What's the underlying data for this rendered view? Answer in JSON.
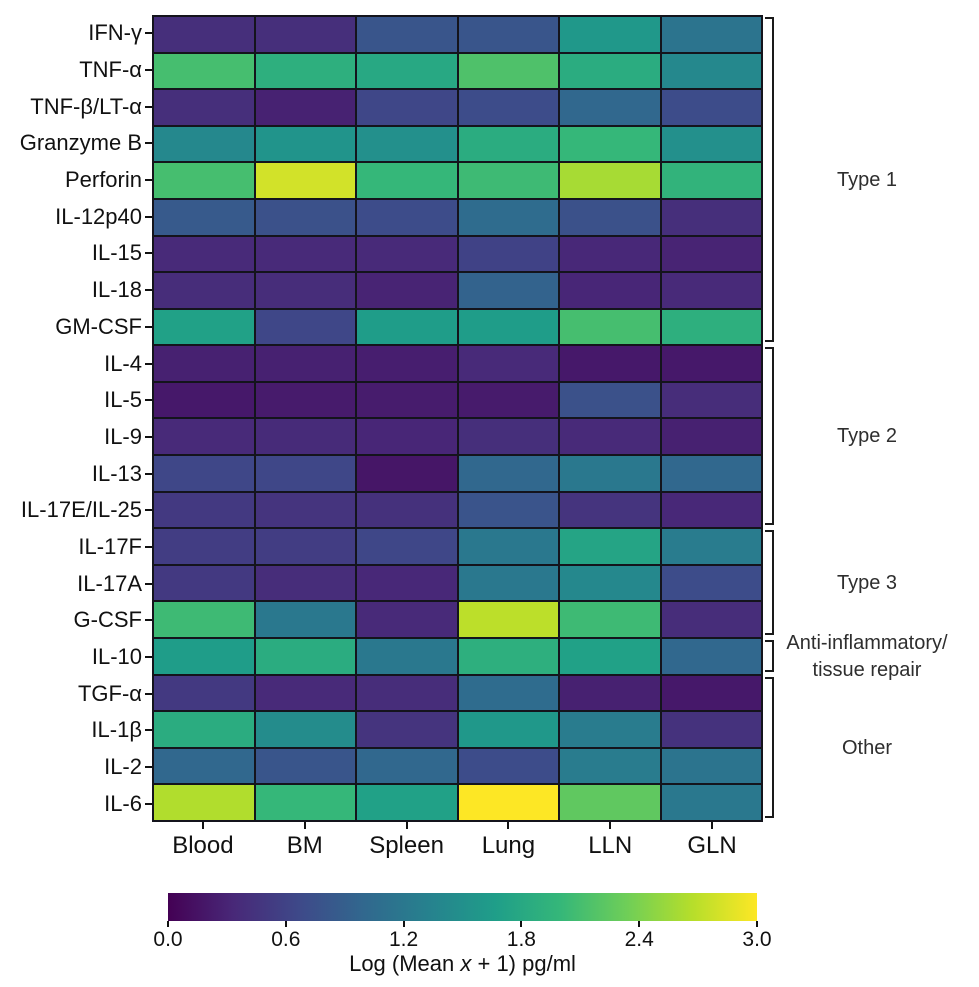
{
  "chart_data": {
    "type": "heatmap",
    "columns": [
      "Blood",
      "BM",
      "Spleen",
      "Lung",
      "LLN",
      "GLN"
    ],
    "rows": [
      "IFN-γ",
      "TNF-α",
      "TNF-β/LT-α",
      "Granzyme B",
      "Perforin",
      "IL-12p40",
      "IL-15",
      "IL-18",
      "GM-CSF",
      "IL-4",
      "IL-5",
      "IL-9",
      "IL-13",
      "IL-17E/IL-25",
      "IL-17F",
      "IL-17A",
      "G-CSF",
      "IL-10",
      "TGF-α",
      "IL-1β",
      "IL-2",
      "IL-6"
    ],
    "values": [
      [
        0.4,
        0.4,
        0.8,
        0.8,
        1.6,
        1.15
      ],
      [
        2.1,
        1.9,
        1.8,
        2.15,
        1.85,
        1.4
      ],
      [
        0.4,
        0.28,
        0.65,
        0.7,
        1.0,
        0.7
      ],
      [
        1.4,
        1.55,
        1.5,
        1.85,
        2.0,
        1.5
      ],
      [
        2.1,
        2.8,
        2.0,
        2.05,
        2.6,
        1.95
      ],
      [
        0.85,
        0.75,
        0.7,
        1.05,
        0.75,
        0.4
      ],
      [
        0.35,
        0.35,
        0.35,
        0.6,
        0.33,
        0.3
      ],
      [
        0.38,
        0.38,
        0.3,
        0.95,
        0.32,
        0.35
      ],
      [
        1.7,
        0.65,
        1.65,
        1.65,
        2.1,
        1.9
      ],
      [
        0.27,
        0.27,
        0.25,
        0.35,
        0.2,
        0.2
      ],
      [
        0.2,
        0.22,
        0.23,
        0.22,
        0.75,
        0.38
      ],
      [
        0.35,
        0.36,
        0.32,
        0.4,
        0.35,
        0.27
      ],
      [
        0.65,
        0.65,
        0.18,
        1.0,
        1.2,
        1.0
      ],
      [
        0.5,
        0.45,
        0.42,
        0.78,
        0.45,
        0.33
      ],
      [
        0.55,
        0.55,
        0.65,
        1.2,
        1.75,
        1.25
      ],
      [
        0.5,
        0.38,
        0.33,
        1.2,
        1.4,
        0.7
      ],
      [
        2.05,
        1.2,
        0.35,
        2.7,
        2.05,
        0.38
      ],
      [
        1.65,
        1.85,
        1.2,
        1.9,
        1.7,
        1.0
      ],
      [
        0.5,
        0.35,
        0.38,
        1.05,
        0.27,
        0.2
      ],
      [
        1.85,
        1.45,
        0.45,
        1.6,
        1.25,
        0.43
      ],
      [
        1.0,
        0.8,
        1.0,
        0.7,
        1.25,
        1.15
      ],
      [
        2.65,
        2.0,
        1.7,
        3.0,
        2.25,
        1.2
      ]
    ],
    "value_scale": {
      "min": 0,
      "max": 3
    },
    "row_groups": [
      {
        "label_lines": [
          "Type 1"
        ],
        "start": 0,
        "count": 9
      },
      {
        "label_lines": [
          "Type 2"
        ],
        "start": 9,
        "count": 5
      },
      {
        "label_lines": [
          "Type 3"
        ],
        "start": 14,
        "count": 3
      },
      {
        "label_lines": [
          "Anti-inflammatory/",
          "tissue repair"
        ],
        "start": 17,
        "count": 1
      },
      {
        "label_lines": [
          "Other"
        ],
        "start": 18,
        "count": 4
      }
    ],
    "colorbar": {
      "tick_labels": [
        "0.0",
        "0.6",
        "1.2",
        "1.8",
        "2.4",
        "3.0"
      ],
      "tick_values": [
        0.0,
        0.6,
        1.2,
        1.8,
        2.4,
        3.0
      ],
      "label_prefix": "Log (Mean ",
      "label_italic": "x",
      "label_suffix": " + 1) pg/ml"
    },
    "colormap": {
      "name": "viridis",
      "stops": [
        "#440154",
        "#482878",
        "#3e4989",
        "#31688e",
        "#26828e",
        "#1f9e89",
        "#35b779",
        "#6ece58",
        "#b5de2b",
        "#fde725"
      ]
    },
    "grid": true,
    "legend_position": "bottom"
  },
  "colors": {
    "grid_line": "#14141c",
    "axis_label": "#111111",
    "group_label": "#2e2e2e"
  }
}
